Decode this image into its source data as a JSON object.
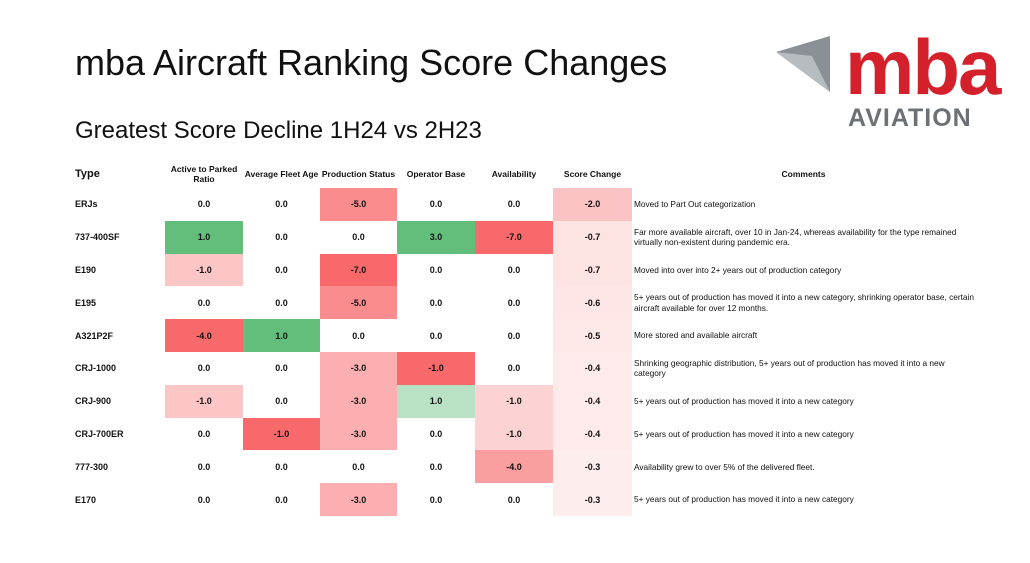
{
  "title": "mba Aircraft Ranking Score Changes",
  "subtitle": "Greatest Score Decline 1H24 vs 2H23",
  "logo": {
    "mark": "mba",
    "word": "AVIATION"
  },
  "table": {
    "header": [
      "Type",
      "Active to Parked Ratio",
      "Average Fleet Age",
      "Production Status",
      "Operator Base",
      "Availability",
      "Score Change",
      "Comments"
    ],
    "rows": [
      [
        "ERJs",
        "0.0",
        "0.0",
        "-5.0",
        "0.0",
        "0.0",
        "-2.0",
        "Moved to Part Out categorization"
      ],
      [
        "737-400SF",
        "1.0",
        "0.0",
        "0.0",
        "3.0",
        "-7.0",
        "-0.7",
        "Far more available aircraft, over 10 in Jan-24, whereas availability for the type remained virtually non-existent during pandemic era."
      ],
      [
        "E190",
        "-1.0",
        "0.0",
        "-7.0",
        "0.0",
        "0.0",
        "-0.7",
        "Moved into over into 2+  years out of production category"
      ],
      [
        "E195",
        "0.0",
        "0.0",
        "-5.0",
        "0.0",
        "0.0",
        "-0.6",
        "5+ years out of production has moved it into a new category, shrinking operator base, certain aircraft available for over 12 months."
      ],
      [
        "A321P2F",
        "-4.0",
        "1.0",
        "0.0",
        "0.0",
        "0.0",
        "-0.5",
        "More stored and available aircraft"
      ],
      [
        "CRJ-1000",
        "0.0",
        "0.0",
        "-3.0",
        "-1.0",
        "0.0",
        "-0.4",
        "Shrinking geographic distribution, 5+ years out of production has moved it into a new category"
      ],
      [
        "CRJ-900",
        "-1.0",
        "0.0",
        "-3.0",
        "1.0",
        "-1.0",
        "-0.4",
        "5+ years out of production has moved it into a new category"
      ],
      [
        "CRJ-700ER",
        "0.0",
        "-1.0",
        "-3.0",
        "0.0",
        "-1.0",
        "-0.4",
        "5+ years out of production has moved it into a new category"
      ],
      [
        "777-300",
        "0.0",
        "0.0",
        "0.0",
        "0.0",
        "-4.0",
        "-0.3",
        "Availability grew to over 5% of the delivered fleet."
      ],
      [
        "E170",
        "0.0",
        "0.0",
        "-3.0",
        "0.0",
        "0.0",
        "-0.3",
        "5+ years out of production has moved it into a new category"
      ]
    ]
  }
}
